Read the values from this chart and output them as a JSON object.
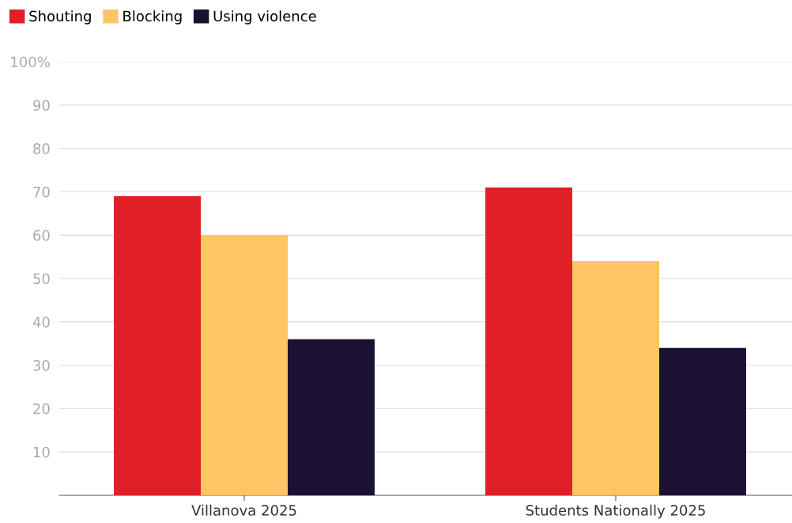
{
  "chart_data": {
    "type": "bar",
    "categories": [
      "Villanova 2025",
      "Students Nationally 2025"
    ],
    "series": [
      {
        "name": "Shouting",
        "color": "#e01f26",
        "values": [
          69,
          71
        ]
      },
      {
        "name": "Blocking",
        "color": "#fec466",
        "values": [
          60,
          54
        ]
      },
      {
        "name": "Using violence",
        "color": "#1b1133",
        "values": [
          36,
          34
        ]
      }
    ],
    "ylim": [
      0,
      100
    ],
    "yticks": [
      10,
      20,
      30,
      40,
      50,
      60,
      70,
      80,
      90,
      {
        "value": 100,
        "label": "100%"
      }
    ],
    "grid": "y",
    "legend": "top left"
  }
}
